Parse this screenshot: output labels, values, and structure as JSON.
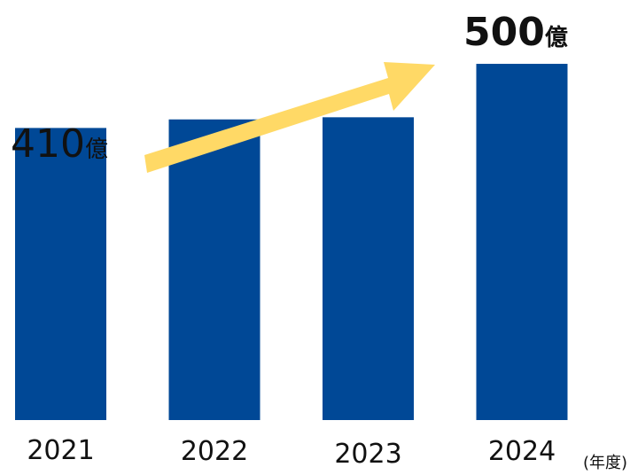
{
  "chart_data": {
    "type": "bar",
    "categories": [
      "2021",
      "2022",
      "2023",
      "2024"
    ],
    "values": [
      410,
      422,
      425,
      500
    ],
    "x_unit": "(年度)",
    "ylim": [
      0,
      510
    ],
    "bar_color": "#004896",
    "arrow_color": "#FFD966",
    "grid": false,
    "annotations": [
      {
        "category": "2021",
        "number": "410",
        "suffix": "億"
      },
      {
        "category": "2024",
        "number": "500",
        "suffix": "億"
      }
    ]
  }
}
